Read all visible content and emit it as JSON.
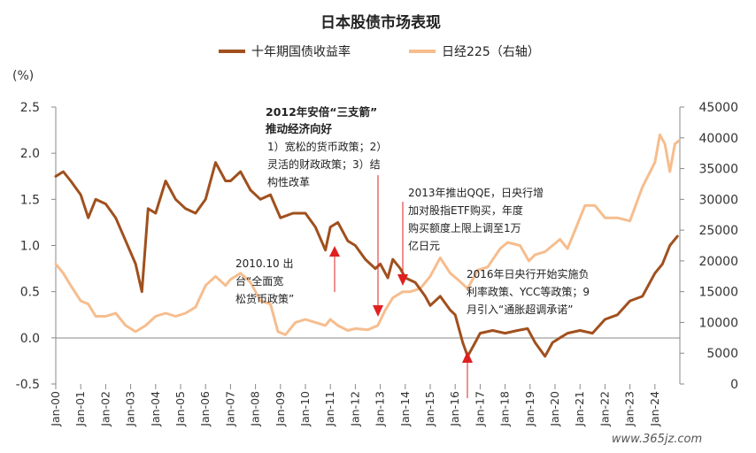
{
  "chart_data": {
    "type": "line",
    "title": "日本股债市场表现",
    "left_unit": "(%)",
    "left_ylim": [
      -0.5,
      2.5
    ],
    "left_ticks": [
      "2.5",
      "2.0",
      "1.5",
      "1.0",
      "0.5",
      "0.0",
      "-0.5"
    ],
    "right_ylim": [
      0,
      45000
    ],
    "right_ticks": [
      "45000",
      "40000",
      "35000",
      "30000",
      "25000",
      "20000",
      "15000",
      "10000",
      "5000",
      "0"
    ],
    "x_ticks": [
      "Jan-00",
      "Jan-01",
      "Jan-02",
      "Jan-03",
      "Jan-04",
      "Jan-05",
      "Jan-06",
      "Jan-07",
      "Jan-08",
      "Jan-09",
      "Jan-10",
      "Jan-11",
      "Jan-12",
      "Jan-13",
      "Jan-14",
      "Jan-15",
      "Jan-16",
      "Jan-17",
      "Jan-18",
      "Jan-19",
      "Jan-20",
      "Jan-21",
      "Jan-22",
      "Jan-23",
      "Jan-24"
    ],
    "legend_position": "top-center",
    "grid": false,
    "series": [
      {
        "name": "十年期国债收益率",
        "axis": "left",
        "color": "#A0501E",
        "x": [
          2000.0,
          2000.3,
          2000.6,
          2001.0,
          2001.3,
          2001.6,
          2002.0,
          2002.4,
          2002.8,
          2003.2,
          2003.45,
          2003.7,
          2004.0,
          2004.4,
          2004.8,
          2005.2,
          2005.6,
          2006.0,
          2006.4,
          2006.8,
          2007.0,
          2007.4,
          2007.8,
          2008.2,
          2008.6,
          2009.0,
          2009.5,
          2010.0,
          2010.4,
          2010.8,
          2011.0,
          2011.3,
          2011.7,
          2012.0,
          2012.4,
          2012.8,
          2013.0,
          2013.3,
          2013.5,
          2013.8,
          2014.0,
          2014.4,
          2014.8,
          2015.0,
          2015.4,
          2015.8,
          2016.0,
          2016.3,
          2016.5,
          2016.8,
          2017.0,
          2017.5,
          2018.0,
          2018.5,
          2018.9,
          2019.2,
          2019.6,
          2019.9,
          2020.2,
          2020.5,
          2021.0,
          2021.5,
          2022.0,
          2022.5,
          2023.0,
          2023.5,
          2024.0,
          2024.3,
          2024.6,
          2024.9
        ],
        "values": [
          1.75,
          1.8,
          1.7,
          1.55,
          1.3,
          1.5,
          1.45,
          1.3,
          1.05,
          0.8,
          0.5,
          1.4,
          1.35,
          1.7,
          1.5,
          1.4,
          1.35,
          1.5,
          1.9,
          1.7,
          1.7,
          1.8,
          1.6,
          1.5,
          1.55,
          1.3,
          1.35,
          1.35,
          1.2,
          0.95,
          1.2,
          1.25,
          1.05,
          1.0,
          0.85,
          0.75,
          0.8,
          0.65,
          0.85,
          0.75,
          0.65,
          0.6,
          0.45,
          0.35,
          0.45,
          0.3,
          0.25,
          -0.05,
          -0.2,
          -0.05,
          0.05,
          0.08,
          0.05,
          0.08,
          0.1,
          -0.05,
          -0.2,
          -0.05,
          0.0,
          0.05,
          0.08,
          0.05,
          0.2,
          0.25,
          0.4,
          0.45,
          0.7,
          0.8,
          1.0,
          1.1
        ]
      },
      {
        "name": "日经225（右轴）",
        "axis": "right",
        "color": "#F6BD8E",
        "x": [
          2000.0,
          2000.3,
          2000.6,
          2001.0,
          2001.3,
          2001.6,
          2002.0,
          2002.4,
          2002.8,
          2003.2,
          2003.6,
          2004.0,
          2004.4,
          2004.8,
          2005.2,
          2005.6,
          2006.0,
          2006.4,
          2006.8,
          2007.0,
          2007.4,
          2007.8,
          2008.2,
          2008.6,
          2008.9,
          2009.2,
          2009.6,
          2010.0,
          2010.4,
          2010.8,
          2011.0,
          2011.3,
          2011.7,
          2012.0,
          2012.5,
          2012.9,
          2013.2,
          2013.5,
          2013.9,
          2014.2,
          2014.6,
          2015.0,
          2015.4,
          2015.8,
          2016.1,
          2016.5,
          2016.9,
          2017.3,
          2017.8,
          2018.1,
          2018.6,
          2018.95,
          2019.2,
          2019.6,
          2020.2,
          2020.5,
          2020.9,
          2021.2,
          2021.6,
          2022.0,
          2022.5,
          2023.0,
          2023.5,
          2024.0,
          2024.2,
          2024.4,
          2024.6,
          2024.8,
          2024.95
        ],
        "values": [
          19500,
          18000,
          16000,
          13500,
          13000,
          11000,
          11000,
          11500,
          9500,
          8500,
          9500,
          11000,
          11500,
          11000,
          11500,
          12500,
          16000,
          17500,
          16000,
          17000,
          18000,
          16500,
          13500,
          13000,
          8500,
          8000,
          10000,
          10500,
          10000,
          9500,
          10500,
          9500,
          8700,
          9000,
          8800,
          9500,
          12000,
          14000,
          15000,
          15000,
          15500,
          17500,
          20500,
          18000,
          17000,
          15500,
          18500,
          19000,
          22000,
          23000,
          22500,
          20000,
          21000,
          21500,
          23500,
          22000,
          26000,
          29000,
          29000,
          27000,
          27000,
          26500,
          32000,
          36000,
          40500,
          39000,
          34500,
          39000,
          39500
        ]
      }
    ],
    "annotations": [
      {
        "bold": [
          "2012年安倍“三支箭”",
          "推动经济向好"
        ],
        "lines": [
          "1）宽松的货币政策；2）",
          "灵活的财政政策；3）结",
          "构性改革"
        ]
      },
      {
        "lines": [
          "2013年推出QQE，日央行增",
          "加对股指ETF购买，年度",
          "购买额度上限上调至1万",
          "亿日元"
        ]
      },
      {
        "lines": [
          "2010.10 出",
          "台“全面宽",
          "松货币政策”"
        ]
      },
      {
        "lines": [
          "2016年日央行开始实施负",
          "利率政策、YCC等政策；9",
          "月引入“通胀超调承诺”"
        ]
      }
    ]
  },
  "watermark": "www.365jz.com"
}
